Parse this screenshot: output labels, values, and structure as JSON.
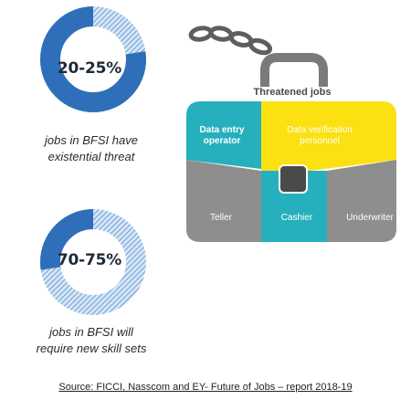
{
  "stats": [
    {
      "value": "20-25%",
      "caption_lines": [
        "jobs in BFSI have",
        "existential threat"
      ],
      "fraction": 0.225
    },
    {
      "value": "70-75%",
      "caption_lines": [
        "jobs in BFSI will",
        "require new skill sets"
      ],
      "fraction": 0.725
    }
  ],
  "briefcase": {
    "title": "Threatened jobs",
    "cells": {
      "data_entry": [
        "Data entry",
        "operator"
      ],
      "data_verification": [
        "Data verification",
        "personnel"
      ],
      "teller": "Teller",
      "cashier": "Cashier",
      "underwriter": "Underwriter"
    }
  },
  "colors": {
    "donut_blue": "#2f6fba",
    "donut_hatch": "#8fb6e0",
    "teal": "#26b0bd",
    "yellow": "#fbe112",
    "gray": "#8e8e8e",
    "handle_gray": "#7a7a7a",
    "chain_gray": "#5e5e5e"
  },
  "source": "Source: FICCI, Nasscom and EY- Future of Jobs – report 2018-19"
}
